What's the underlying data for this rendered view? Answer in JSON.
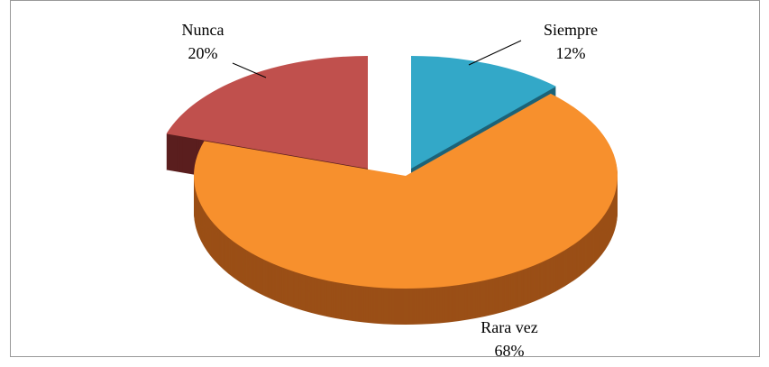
{
  "chart_data": {
    "type": "pie",
    "categories": [
      "Siempre",
      "Rara vez",
      "Nunca"
    ],
    "values": [
      12,
      68,
      20
    ],
    "value_labels": [
      "12%",
      "68%",
      "20%"
    ],
    "colors": [
      "#33a8c8",
      "#f7902d",
      "#c0504d"
    ],
    "side_colors": [
      "#1d6378",
      "#9a4f16",
      "#5a1e1e"
    ]
  }
}
